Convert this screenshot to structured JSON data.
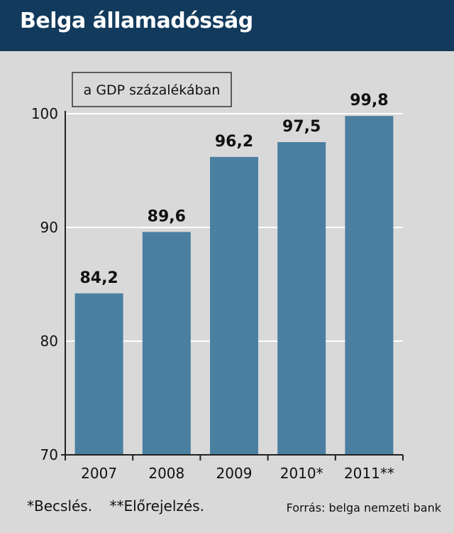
{
  "header": {
    "title": "Belga államadósság"
  },
  "footer": {
    "note_estimate": "*Becslés.",
    "note_forecast": "**Előrejelzés.",
    "source": "Forrás: belga nemzeti bank"
  },
  "colors": {
    "header_bg": "#123a5c",
    "bar": "#4a7fa1",
    "background": "#d9d9d9"
  },
  "chart_data": {
    "type": "bar",
    "title": "",
    "subtitle": "a GDP százalékában",
    "categories": [
      "2007",
      "2008",
      "2009",
      "2010*",
      "2011**"
    ],
    "values": [
      84.2,
      89.6,
      96.2,
      97.5,
      99.8
    ],
    "value_labels": [
      "84,2",
      "89,6",
      "96,2",
      "97,5",
      "99,8"
    ],
    "ylim": [
      70,
      100
    ],
    "yticks": [
      70,
      80,
      90,
      100
    ],
    "ytick_labels": [
      "70",
      "80",
      "90",
      "100"
    ],
    "xlabel": "",
    "ylabel": "",
    "grid": true
  }
}
